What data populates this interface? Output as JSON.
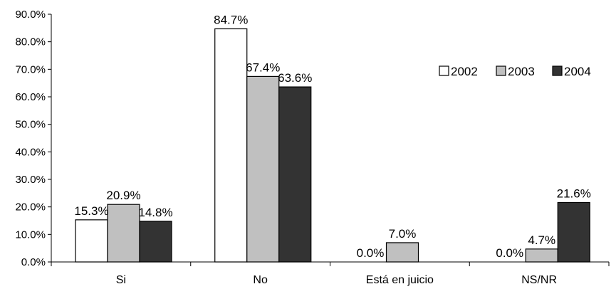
{
  "chart_data": {
    "type": "bar",
    "categories": [
      "Si",
      "No",
      "Está en juicio",
      "NS/NR"
    ],
    "series": [
      {
        "name": "2002",
        "values": [
          15.3,
          84.7,
          0.0,
          0.0
        ],
        "labels": [
          "15.3%",
          "84.7%",
          "0.0%",
          "0.0%"
        ],
        "color": "#ffffff"
      },
      {
        "name": "2003",
        "values": [
          20.9,
          67.4,
          7.0,
          4.7
        ],
        "labels": [
          "20.9%",
          "67.4%",
          "7.0%",
          "4.7%"
        ],
        "color": "#c0c0c0"
      },
      {
        "name": "2004",
        "values": [
          14.8,
          63.6,
          0.0,
          21.6
        ],
        "labels": [
          "14.8%",
          "63.6%",
          "",
          "21.6%"
        ],
        "color": "#333333"
      }
    ],
    "y_ticks": [
      "0.0%",
      "10.0%",
      "20.0%",
      "30.0%",
      "40.0%",
      "50.0%",
      "60.0%",
      "70.0%",
      "80.0%",
      "90.0%"
    ],
    "ylim": [
      0,
      90
    ],
    "grid": false,
    "legend_position": "right"
  }
}
